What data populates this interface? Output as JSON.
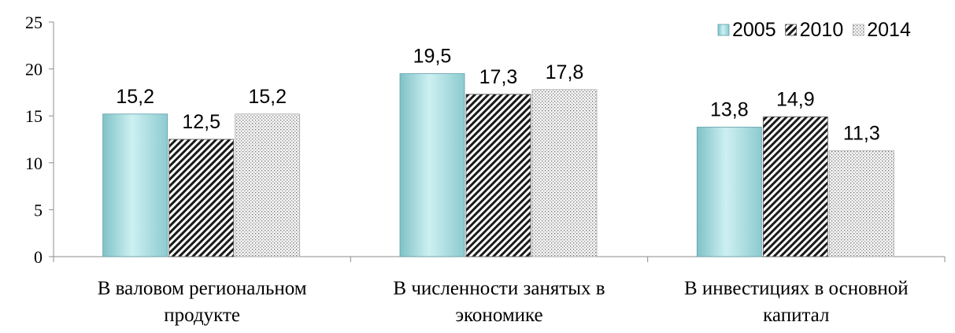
{
  "chart_data": {
    "type": "bar",
    "categories": [
      [
        "В валовом региональном",
        "продукте"
      ],
      [
        "В численности занятых в",
        "экономике"
      ],
      [
        "В инвестициях в основной",
        "капитал"
      ]
    ],
    "series": [
      {
        "name": "2005",
        "values": [
          15.2,
          19.5,
          13.8
        ],
        "labels": [
          "15,2",
          "19,5",
          "13,8"
        ],
        "fill": "teal-gradient"
      },
      {
        "name": "2010",
        "values": [
          12.5,
          17.3,
          14.9
        ],
        "labels": [
          "12,5",
          "17,3",
          "14,9"
        ],
        "fill": "diagonal-hatch"
      },
      {
        "name": "2014",
        "values": [
          15.2,
          17.8,
          11.3
        ],
        "labels": [
          "15,2",
          "17,8",
          "11,3"
        ],
        "fill": "dotted"
      }
    ],
    "ylim": [
      0,
      25
    ],
    "yticks": [
      "0",
      "5",
      "10",
      "15",
      "20",
      "25"
    ],
    "legend_position": "top-right",
    "grid": false,
    "colors": {
      "series_2005": "#a8dde0",
      "series_2005_edge": "#5f9ea6",
      "axis": "#8c8c8c"
    }
  }
}
